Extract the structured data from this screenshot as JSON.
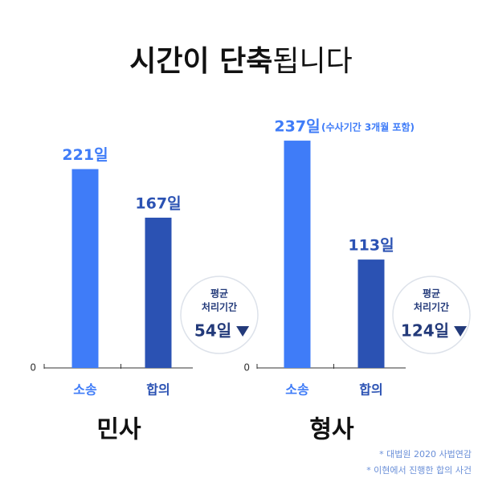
{
  "title": {
    "bold": "시간이 단축",
    "regular": "됩니다"
  },
  "chart_data": [
    {
      "type": "bar",
      "title": "민사",
      "categories": [
        "소송",
        "합의"
      ],
      "values": [
        221,
        167
      ],
      "value_labels": [
        "221일",
        "167일"
      ],
      "colors": [
        "#3f7cf8",
        "#2b52b3"
      ],
      "ylim": [
        0,
        275
      ],
      "yticks": [
        0
      ],
      "badge": {
        "label": [
          "평균",
          "처리기간"
        ],
        "value": "54일"
      }
    },
    {
      "type": "bar",
      "title": "형사",
      "categories": [
        "소송",
        "합의"
      ],
      "values": [
        237,
        113
      ],
      "value_labels": [
        "237일",
        "113일"
      ],
      "annotation": "(수사기간 3개월 포함)",
      "colors": [
        "#3f7cf8",
        "#2b52b3"
      ],
      "ylim": [
        0,
        258
      ],
      "yticks": [
        0
      ],
      "badge": {
        "label": [
          "평균",
          "처리기간"
        ],
        "value": "124일"
      }
    }
  ],
  "footnotes": [
    "* 대법원 2020 사법연감",
    "* 이현에서 진행한 합의 사건"
  ]
}
